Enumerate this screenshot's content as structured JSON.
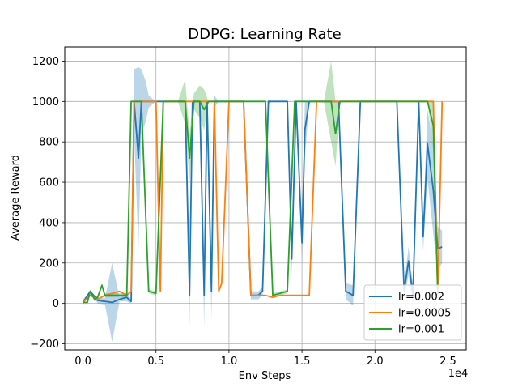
{
  "colors": {
    "series": [
      "#1f77b4",
      "#ff7f0e",
      "#2ca02c"
    ],
    "grid": "#b0b0b0",
    "axes": "#000000",
    "background": "#ffffff"
  },
  "chart_data": {
    "type": "line",
    "title": "DDPG: Learning Rate",
    "xlabel": "Env Steps",
    "ylabel": "Average Reward",
    "x_offset_text": "1e4",
    "xlim": [
      -1.25,
      26.25
    ],
    "ylim": [
      -230,
      1270
    ],
    "x_ticks": [
      0,
      5,
      10,
      15,
      20,
      25
    ],
    "x_tick_labels": [
      "0.0",
      "0.5",
      "1.0",
      "1.5",
      "2.0",
      "2.5"
    ],
    "y_ticks": [
      -200,
      0,
      200,
      400,
      600,
      800,
      1000,
      1200
    ],
    "y_tick_labels": [
      "−200",
      "0",
      "200",
      "400",
      "600",
      "800",
      "1000",
      "1200"
    ],
    "grid": true,
    "legend_position": "lower-right",
    "x_units_note": "x values in units of 1e4 env steps",
    "series": [
      {
        "name": "lr=0.002",
        "color": "#1f77b4",
        "x": [
          0,
          0.5,
          1,
          1.5,
          2,
          2.5,
          3,
          3.3,
          3.5,
          3.8,
          4,
          4.3,
          4.5,
          5,
          5.5,
          6,
          6.5,
          7,
          7.3,
          7.5,
          7.8,
          8,
          8.3,
          8.5,
          8.8,
          9,
          9.3,
          9.5,
          10,
          10.5,
          11,
          11.5,
          12,
          12.3,
          12.7,
          13,
          13.5,
          14,
          14.3,
          14.6,
          15,
          15.2,
          15.5,
          16,
          16.5,
          17,
          17.5,
          18,
          18.5,
          19,
          19.3,
          19.6,
          20,
          20.5,
          21,
          21.5,
          22,
          22.3,
          22.6,
          23,
          23.3,
          23.6,
          24,
          24.3,
          24.6
        ],
        "y": [
          5,
          60,
          15,
          10,
          5,
          20,
          30,
          10,
          1000,
          720,
          1000,
          1000,
          1000,
          1000,
          1000,
          1000,
          1000,
          1000,
          40,
          1000,
          1000,
          1000,
          40,
          1000,
          60,
          1000,
          1000,
          1000,
          1000,
          1000,
          1000,
          40,
          40,
          60,
          1000,
          1000,
          1000,
          1000,
          220,
          1000,
          300,
          860,
          1000,
          1000,
          1000,
          1000,
          1000,
          60,
          40,
          1000,
          1000,
          1000,
          1000,
          1000,
          1000,
          1000,
          60,
          210,
          40,
          1000,
          330,
          790,
          560,
          270,
          280
        ],
        "band": [
          20,
          60,
          30,
          25,
          200,
          30,
          50,
          20,
          1160,
          1170,
          1160,
          1100,
          1030,
          1000,
          1000,
          1000,
          1000,
          1000,
          200,
          1010,
          1000,
          1000,
          200,
          1010,
          200,
          1030,
          1000,
          1000,
          1000,
          1000,
          1000,
          60,
          60,
          80,
          1010,
          1000,
          1000,
          1000,
          300,
          1010,
          400,
          1000,
          1000,
          1000,
          1000,
          1000,
          1000,
          100,
          90,
          1000,
          1000,
          1000,
          1000,
          1000,
          1000,
          1000,
          100,
          280,
          90,
          1000,
          400,
          960,
          780,
          380,
          360
        ]
      },
      {
        "name": "lr=0.0005",
        "color": "#ff7f0e",
        "x": [
          0,
          0.5,
          1,
          1.5,
          2,
          2.5,
          3,
          3.3,
          3.5,
          4,
          4.5,
          5,
          5.3,
          5.5,
          6,
          6.5,
          7,
          7.3,
          7.6,
          8,
          8.5,
          9,
          9.3,
          9.5,
          10,
          10.5,
          11,
          11.5,
          12,
          12.5,
          13,
          13.5,
          14,
          14.5,
          15,
          15.5,
          16,
          16.5,
          17,
          17.5,
          18,
          18.5,
          19,
          19.5,
          20,
          20.5,
          21,
          21.5,
          22,
          22.5,
          23,
          23.5,
          24,
          24.3,
          24.6
        ],
        "y": [
          5,
          40,
          20,
          40,
          50,
          60,
          40,
          60,
          1000,
          1000,
          1000,
          1000,
          60,
          1000,
          1000,
          1000,
          1000,
          1000,
          1000,
          1000,
          1000,
          1000,
          60,
          100,
          1000,
          1000,
          1000,
          40,
          40,
          40,
          30,
          40,
          40,
          40,
          40,
          40,
          1000,
          1000,
          1000,
          1000,
          1000,
          1000,
          1000,
          1000,
          1000,
          1000,
          1000,
          1000,
          1000,
          1000,
          1000,
          1000,
          1000,
          40,
          1000
        ]
      },
      {
        "name": "lr=0.001",
        "color": "#2ca02c",
        "x": [
          0,
          0.3,
          0.5,
          0.8,
          1,
          1.3,
          1.5,
          2,
          2.5,
          3,
          3.3,
          3.6,
          4,
          4.5,
          5,
          5.5,
          6,
          6.5,
          7,
          7.3,
          7.6,
          8,
          8.3,
          8.6,
          9,
          9.5,
          10,
          10.5,
          11,
          11.5,
          12,
          12.5,
          13,
          13.5,
          14,
          14.5,
          15,
          15.5,
          16,
          16.5,
          17,
          17.3,
          17.6,
          18,
          18.5,
          19,
          19.5,
          20,
          20.5,
          21,
          21.5,
          22,
          22.5,
          23,
          23.3,
          23.6,
          24,
          24.3
        ],
        "y": [
          5,
          5,
          60,
          20,
          30,
          90,
          40,
          40,
          40,
          40,
          1000,
          1000,
          1000,
          60,
          50,
          1000,
          1000,
          1000,
          1000,
          720,
          1000,
          1000,
          960,
          1000,
          1000,
          1000,
          1000,
          1000,
          1000,
          1000,
          1000,
          1000,
          40,
          50,
          60,
          1000,
          1000,
          1000,
          1000,
          1000,
          1000,
          840,
          1000,
          1000,
          1000,
          1000,
          1000,
          1000,
          1000,
          1000,
          1000,
          1000,
          1000,
          1000,
          1000,
          1000,
          880,
          50
        ],
        "band": [
          5,
          5,
          70,
          30,
          40,
          100,
          50,
          50,
          50,
          50,
          1000,
          1000,
          1000,
          70,
          60,
          1000,
          1000,
          1000,
          1110,
          840,
          1040,
          1080,
          1060,
          1000,
          1000,
          1000,
          1000,
          1000,
          1000,
          1000,
          1000,
          1000,
          50,
          60,
          70,
          1000,
          1000,
          1000,
          1000,
          1000,
          1200,
          1000,
          1000,
          1000,
          1000,
          1000,
          1000,
          1000,
          1000,
          1000,
          1000,
          1000,
          1000,
          1000,
          1000,
          1000,
          1000,
          80
        ]
      }
    ]
  }
}
